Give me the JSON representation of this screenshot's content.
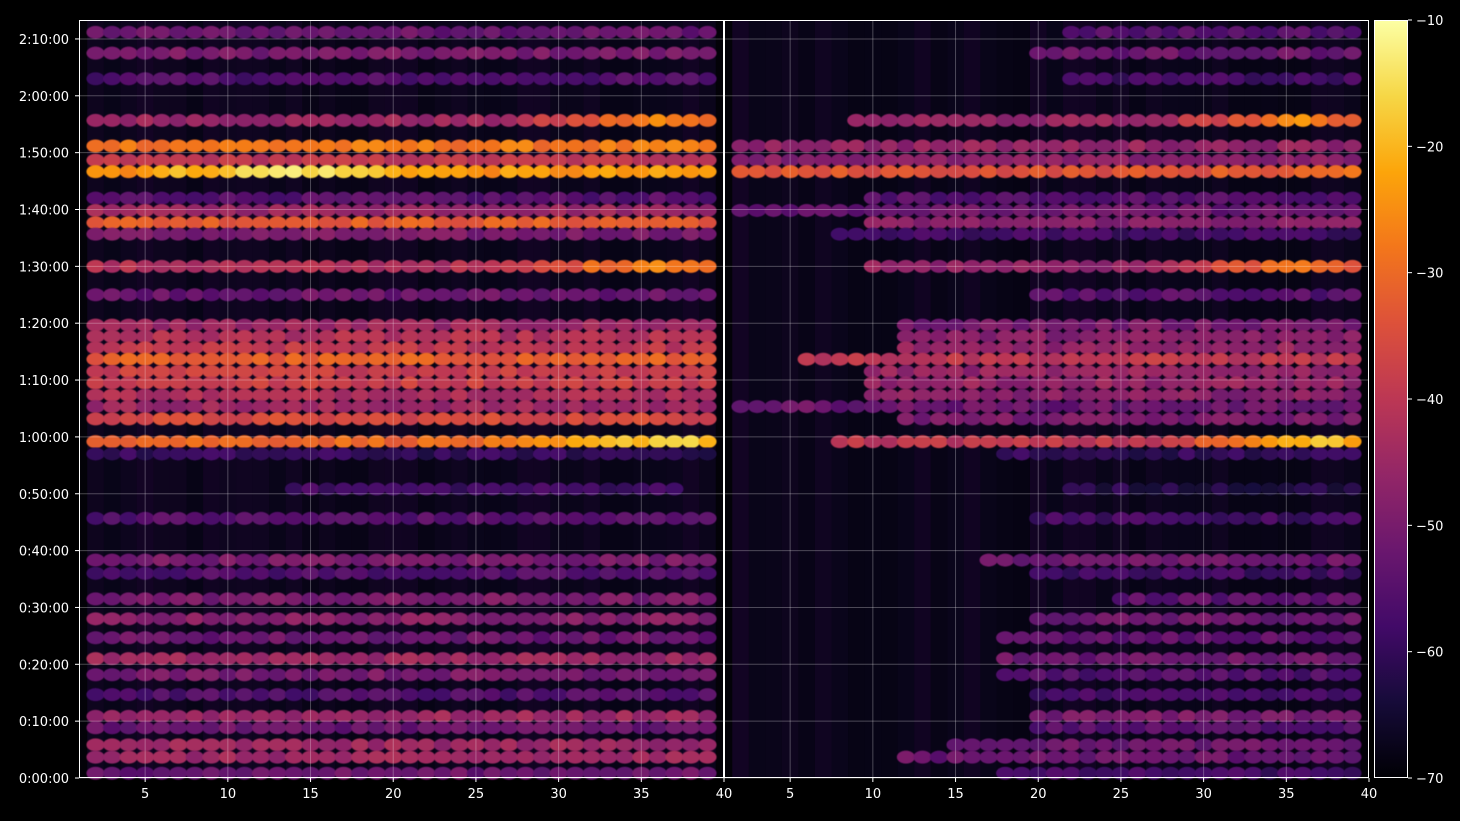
{
  "chart_data": {
    "type": "heatmap",
    "title": "",
    "colorbar": {
      "colormap": "inferno",
      "range": [
        -70,
        -10
      ],
      "ticks": [
        "−70",
        "−60",
        "−50",
        "−40",
        "−30",
        "−20",
        "−10"
      ],
      "tick_values": [
        -70,
        -60,
        -50,
        -40,
        -30,
        -20,
        -10
      ]
    },
    "y_axis": {
      "range_seconds": [
        0,
        8000
      ],
      "ticks": [
        "0:00:00",
        "0:10:00",
        "0:20:00",
        "0:30:00",
        "0:40:00",
        "0:50:00",
        "1:00:00",
        "1:10:00",
        "1:20:00",
        "1:30:00",
        "1:40:00",
        "1:50:00",
        "2:00:00",
        "2:10:00"
      ],
      "tick_seconds": [
        0,
        600,
        1200,
        1800,
        2400,
        3000,
        3600,
        4200,
        4800,
        5400,
        6000,
        6600,
        7200,
        7800
      ],
      "grid": true
    },
    "panels": [
      {
        "name": "left",
        "x_range": [
          1,
          40
        ],
        "x_ticks": [
          "5",
          "10",
          "15",
          "20",
          "25",
          "30",
          "35",
          "40"
        ],
        "x_tick_values": [
          5,
          10,
          15,
          20,
          25,
          30,
          35,
          40
        ],
        "grid": true,
        "bands": [
          {
            "y": 7870,
            "level": -52,
            "x0": 2,
            "x1": 39
          },
          {
            "y": 7650,
            "level": -50,
            "x0": 2,
            "x1": 39
          },
          {
            "y": 7380,
            "level": -56,
            "x0": 2,
            "x1": 39
          },
          {
            "y": 6940,
            "level": -45,
            "x0": 2,
            "x1": 39,
            "peak": -26,
            "peak_x": 36
          },
          {
            "y": 6670,
            "level": -28,
            "x0": 2,
            "x1": 39
          },
          {
            "y": 6520,
            "level": -40,
            "x0": 2,
            "x1": 39
          },
          {
            "y": 6400,
            "level": -24,
            "x0": 2,
            "x1": 39,
            "peak": -13,
            "peak_x": 14
          },
          {
            "y": 6120,
            "level": -55,
            "x0": 2,
            "x1": 39
          },
          {
            "y": 5990,
            "level": -45,
            "x0": 2,
            "x1": 39
          },
          {
            "y": 5860,
            "level": -32,
            "x0": 2,
            "x1": 39
          },
          {
            "y": 5740,
            "level": -50,
            "x0": 2,
            "x1": 39
          },
          {
            "y": 5400,
            "level": -42,
            "x0": 2,
            "x1": 39,
            "peak": -24,
            "peak_x": 36
          },
          {
            "y": 5100,
            "level": -52,
            "x0": 2,
            "x1": 39
          },
          {
            "y": 4780,
            "level": -45,
            "x0": 2,
            "x1": 39
          },
          {
            "y": 4660,
            "level": -42,
            "x0": 2,
            "x1": 39
          },
          {
            "y": 4540,
            "level": -40,
            "x0": 2,
            "x1": 39
          },
          {
            "y": 4420,
            "level": -32,
            "x0": 2,
            "x1": 39
          },
          {
            "y": 4290,
            "level": -38,
            "x0": 2,
            "x1": 39
          },
          {
            "y": 4170,
            "level": -38,
            "x0": 2,
            "x1": 39
          },
          {
            "y": 4040,
            "level": -42,
            "x0": 2,
            "x1": 39
          },
          {
            "y": 3920,
            "level": -45,
            "x0": 2,
            "x1": 39
          },
          {
            "y": 3790,
            "level": -36,
            "x0": 2,
            "x1": 39
          },
          {
            "y": 3550,
            "level": -30,
            "x0": 2,
            "x1": 39,
            "peak": -15,
            "peak_x": 37
          },
          {
            "y": 3420,
            "level": -60,
            "x0": 2,
            "x1": 39
          },
          {
            "y": 3050,
            "level": -58,
            "x0": 14,
            "x1": 37
          },
          {
            "y": 2740,
            "level": -55,
            "x0": 2,
            "x1": 39
          },
          {
            "y": 2300,
            "level": -50,
            "x0": 2,
            "x1": 39
          },
          {
            "y": 2160,
            "level": -56,
            "x0": 2,
            "x1": 39
          },
          {
            "y": 1890,
            "level": -50,
            "x0": 2,
            "x1": 39
          },
          {
            "y": 1680,
            "level": -48,
            "x0": 2,
            "x1": 39
          },
          {
            "y": 1480,
            "level": -52,
            "x0": 2,
            "x1": 39
          },
          {
            "y": 1260,
            "level": -45,
            "x0": 2,
            "x1": 39
          },
          {
            "y": 1090,
            "level": -50,
            "x0": 2,
            "x1": 39
          },
          {
            "y": 880,
            "level": -56,
            "x0": 2,
            "x1": 39
          },
          {
            "y": 650,
            "level": -45,
            "x0": 2,
            "x1": 39
          },
          {
            "y": 530,
            "level": -52,
            "x0": 2,
            "x1": 39
          },
          {
            "y": 350,
            "level": -45,
            "x0": 2,
            "x1": 39
          },
          {
            "y": 220,
            "level": -45,
            "x0": 2,
            "x1": 39
          },
          {
            "y": 50,
            "level": -52,
            "x0": 2,
            "x1": 39
          }
        ]
      },
      {
        "name": "right",
        "x_range": [
          1,
          40
        ],
        "x_ticks": [
          "5",
          "10",
          "15",
          "20",
          "25",
          "30",
          "35",
          "40"
        ],
        "x_tick_values": [
          5,
          10,
          15,
          20,
          25,
          30,
          35,
          40
        ],
        "grid": true,
        "bands": [
          {
            "y": 7870,
            "level": -55,
            "x0": 22,
            "x1": 39
          },
          {
            "y": 7650,
            "level": -52,
            "x0": 20,
            "x1": 39
          },
          {
            "y": 7380,
            "level": -58,
            "x0": 22,
            "x1": 39
          },
          {
            "y": 6940,
            "level": -46,
            "x0": 9,
            "x1": 39,
            "peak": -26,
            "peak_x": 36
          },
          {
            "y": 6670,
            "level": -46,
            "x0": 2,
            "x1": 39
          },
          {
            "y": 6520,
            "level": -48,
            "x0": 2,
            "x1": 39
          },
          {
            "y": 6400,
            "level": -34,
            "x0": 2,
            "x1": 39,
            "peak": -30,
            "peak_x": 39
          },
          {
            "y": 6120,
            "level": -55,
            "x0": 10,
            "x1": 39
          },
          {
            "y": 5990,
            "level": -52,
            "x0": 2,
            "x1": 39
          },
          {
            "y": 5860,
            "level": -48,
            "x0": 10,
            "x1": 39
          },
          {
            "y": 5740,
            "level": -58,
            "x0": 8,
            "x1": 39
          },
          {
            "y": 5400,
            "level": -46,
            "x0": 10,
            "x1": 39,
            "peak": -26,
            "peak_x": 36
          },
          {
            "y": 5100,
            "level": -55,
            "x0": 20,
            "x1": 39
          },
          {
            "y": 4780,
            "level": -50,
            "x0": 12,
            "x1": 39
          },
          {
            "y": 4660,
            "level": -48,
            "x0": 12,
            "x1": 39
          },
          {
            "y": 4540,
            "level": -46,
            "x0": 12,
            "x1": 39
          },
          {
            "y": 4420,
            "level": -40,
            "x0": 6,
            "x1": 39
          },
          {
            "y": 4290,
            "level": -46,
            "x0": 10,
            "x1": 39
          },
          {
            "y": 4170,
            "level": -46,
            "x0": 10,
            "x1": 39
          },
          {
            "y": 4040,
            "level": -48,
            "x0": 10,
            "x1": 39
          },
          {
            "y": 3920,
            "level": -52,
            "x0": 2,
            "x1": 39
          },
          {
            "y": 3790,
            "level": -50,
            "x0": 12,
            "x1": 39
          },
          {
            "y": 3550,
            "level": -40,
            "x0": 8,
            "x1": 39,
            "peak": -18,
            "peak_x": 37
          },
          {
            "y": 3420,
            "level": -60,
            "x0": 18,
            "x1": 39
          },
          {
            "y": 3050,
            "level": -62,
            "x0": 22,
            "x1": 39
          },
          {
            "y": 2740,
            "level": -58,
            "x0": 20,
            "x1": 39
          },
          {
            "y": 2300,
            "level": -52,
            "x0": 17,
            "x1": 39
          },
          {
            "y": 2160,
            "level": -58,
            "x0": 20,
            "x1": 39
          },
          {
            "y": 1890,
            "level": -54,
            "x0": 25,
            "x1": 39
          },
          {
            "y": 1680,
            "level": -52,
            "x0": 20,
            "x1": 39
          },
          {
            "y": 1480,
            "level": -54,
            "x0": 18,
            "x1": 39
          },
          {
            "y": 1260,
            "level": -52,
            "x0": 18,
            "x1": 39
          },
          {
            "y": 1090,
            "level": -56,
            "x0": 18,
            "x1": 39
          },
          {
            "y": 880,
            "level": -58,
            "x0": 20,
            "x1": 39
          },
          {
            "y": 650,
            "level": -50,
            "x0": 20,
            "x1": 39
          },
          {
            "y": 530,
            "level": -55,
            "x0": 20,
            "x1": 39
          },
          {
            "y": 350,
            "level": -52,
            "x0": 15,
            "x1": 39
          },
          {
            "y": 220,
            "level": -52,
            "x0": 12,
            "x1": 39
          },
          {
            "y": 50,
            "level": -58,
            "x0": 18,
            "x1": 39
          }
        ]
      }
    ]
  }
}
